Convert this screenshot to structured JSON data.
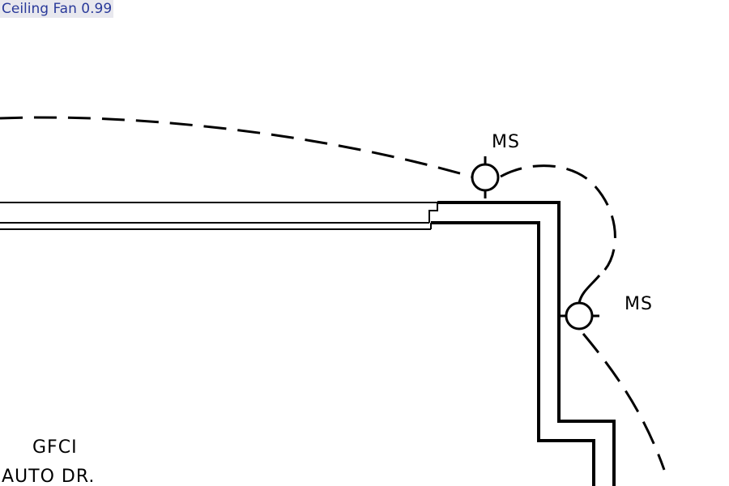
{
  "detection": {
    "label": "Ceiling Fan 0.99",
    "label_color": "#2a3a9a",
    "label_background": "#e8e8ee"
  },
  "drawing": {
    "line_color": "#000000",
    "background": "#ffffff",
    "annotations": {
      "switch_top": "MS",
      "switch_right": "MS",
      "gfci": "GFCI",
      "auto_door": "AUTO DR."
    }
  }
}
